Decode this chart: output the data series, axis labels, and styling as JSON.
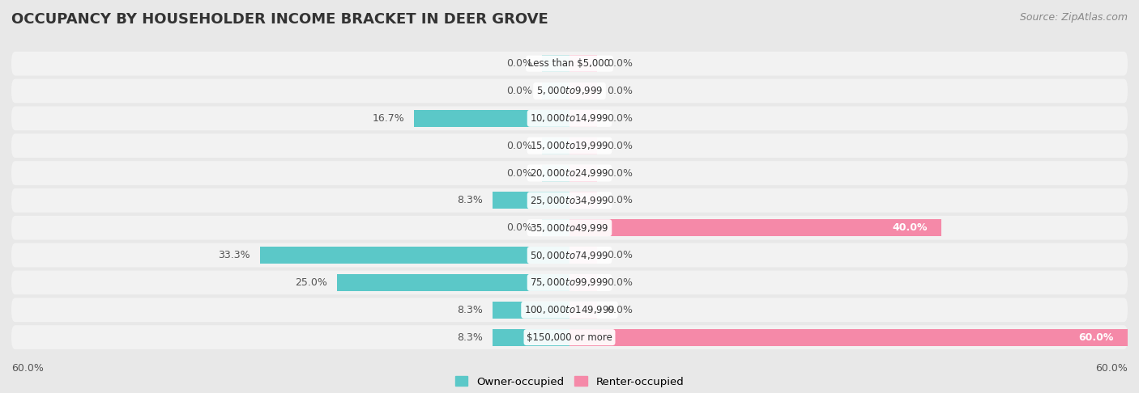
{
  "title": "OCCUPANCY BY HOUSEHOLDER INCOME BRACKET IN DEER GROVE",
  "source": "Source: ZipAtlas.com",
  "categories": [
    "Less than $5,000",
    "$5,000 to $9,999",
    "$10,000 to $14,999",
    "$15,000 to $19,999",
    "$20,000 to $24,999",
    "$25,000 to $34,999",
    "$35,000 to $49,999",
    "$50,000 to $74,999",
    "$75,000 to $99,999",
    "$100,000 to $149,999",
    "$150,000 or more"
  ],
  "owner_values": [
    0.0,
    0.0,
    16.7,
    0.0,
    0.0,
    8.3,
    0.0,
    33.3,
    25.0,
    8.3,
    8.3
  ],
  "renter_values": [
    0.0,
    0.0,
    0.0,
    0.0,
    0.0,
    0.0,
    40.0,
    0.0,
    0.0,
    0.0,
    60.0
  ],
  "owner_color": "#5bc8c8",
  "renter_color": "#f589a8",
  "owner_color_light": "#a8dede",
  "renter_color_light": "#f9c0d0",
  "bar_height": 0.62,
  "xlim": 60.0,
  "background_color": "#e8e8e8",
  "row_bg_color": "#f2f2f2",
  "row_border_color": "#ffffff",
  "title_fontsize": 13,
  "label_fontsize": 9,
  "axis_label_fontsize": 9,
  "source_fontsize": 9,
  "stub_size": 3.0
}
